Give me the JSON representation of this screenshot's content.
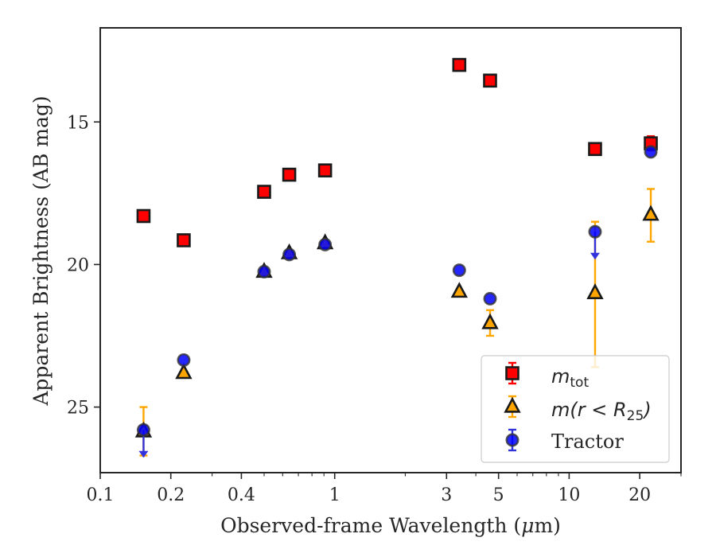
{
  "chart_data": {
    "type": "scatter",
    "xscale": "log",
    "yinverted": true,
    "xlim": [
      0.1,
      30
    ],
    "ylim": [
      27.3,
      11.7
    ],
    "xlabel_prefix": "Observed-frame Wavelength (",
    "xlabel_mu": "μ",
    "xlabel_suffix": "m)",
    "ylabel": "Apparent Brightness (AB mag)",
    "xticks": [
      {
        "v": 0.1,
        "label": "0.1"
      },
      {
        "v": 0.2,
        "label": "0.2"
      },
      {
        "v": 0.4,
        "label": "0.4"
      },
      {
        "v": 1,
        "label": "1"
      },
      {
        "v": 3,
        "label": "3"
      },
      {
        "v": 5,
        "label": "5"
      },
      {
        "v": 10,
        "label": "10"
      },
      {
        "v": 20,
        "label": "20"
      }
    ],
    "yticks": [
      {
        "v": 15,
        "label": "15"
      },
      {
        "v": 20,
        "label": "20"
      },
      {
        "v": 25,
        "label": "25"
      }
    ],
    "series": [
      {
        "name_main": "m",
        "name_sub": "tot",
        "name_rest": "",
        "marker": "square",
        "fill": "#ff0000",
        "edge": "#1a1a1a",
        "errcolor": "#ff0000",
        "points": [
          {
            "x": 0.153,
            "y": 18.3
          },
          {
            "x": 0.227,
            "y": 19.15
          },
          {
            "x": 0.5,
            "y": 17.45
          },
          {
            "x": 0.64,
            "y": 16.85
          },
          {
            "x": 0.91,
            "y": 16.7
          },
          {
            "x": 3.4,
            "y": 13.0
          },
          {
            "x": 4.6,
            "y": 13.55
          },
          {
            "x": 12.9,
            "y": 15.95
          },
          {
            "x": 22.3,
            "y": 15.75,
            "lo": 15.5,
            "hi": 16.0
          }
        ]
      },
      {
        "name_main": "m",
        "name_sub": "",
        "name_rest": "(r < R",
        "name_sub2": "25",
        "name_close": ")",
        "marker": "triangle",
        "fill": "#ffa500",
        "edge": "#1a1a1a",
        "errcolor": "#ffa500",
        "points": [
          {
            "x": 0.153,
            "y": 25.85,
            "lo": 25.0,
            "hi": 26.7
          },
          {
            "x": 0.227,
            "y": 23.8
          },
          {
            "x": 0.5,
            "y": 20.25
          },
          {
            "x": 0.64,
            "y": 19.6
          },
          {
            "x": 0.91,
            "y": 19.25
          },
          {
            "x": 3.4,
            "y": 20.95
          },
          {
            "x": 4.6,
            "y": 22.05,
            "lo": 21.6,
            "hi": 22.5
          },
          {
            "x": 12.9,
            "y": 21.0,
            "lo": 18.5,
            "hi": 23.6
          },
          {
            "x": 22.3,
            "y": 18.25,
            "lo": 17.35,
            "hi": 19.2
          }
        ]
      },
      {
        "name_main": "Tractor",
        "marker": "circle",
        "fill": "#0000ff",
        "edge": "#333333",
        "errcolor": "#3333dd",
        "points": [
          {
            "x": 0.153,
            "y": 25.8,
            "upper": true
          },
          {
            "x": 0.227,
            "y": 23.35
          },
          {
            "x": 0.5,
            "y": 20.25
          },
          {
            "x": 0.64,
            "y": 19.65
          },
          {
            "x": 0.91,
            "y": 19.3
          },
          {
            "x": 3.4,
            "y": 20.2
          },
          {
            "x": 4.6,
            "y": 21.2
          },
          {
            "x": 12.9,
            "y": 18.85,
            "upper": true
          },
          {
            "x": 22.3,
            "y": 16.05
          }
        ]
      }
    ],
    "legend": "lower right",
    "grid": false
  }
}
